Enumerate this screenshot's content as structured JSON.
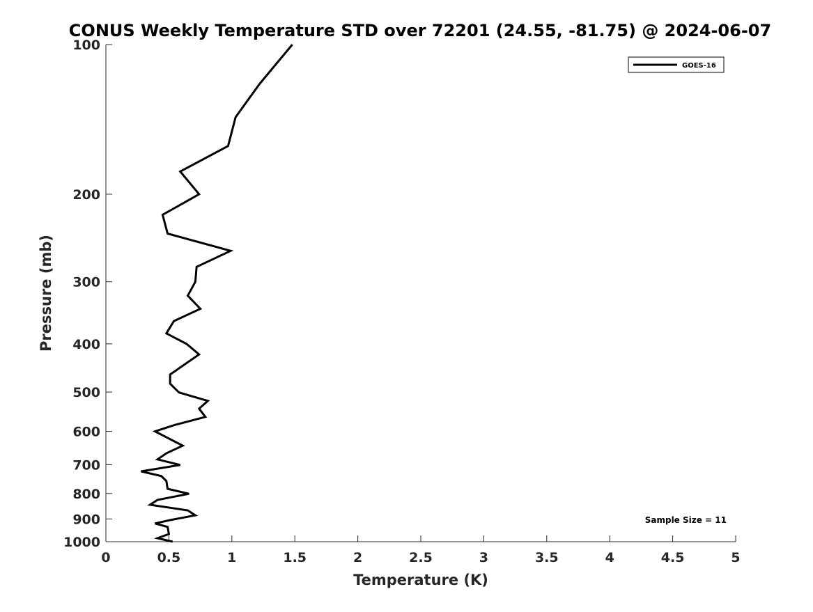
{
  "chart_data": {
    "type": "line",
    "title": "CONUS Weekly Temperature STD over 72201 (24.55, -81.75) @ 2024-06-07",
    "xlabel": "Temperature (K)",
    "ylabel": "Pressure (mb)",
    "xlim": [
      0,
      5
    ],
    "ylim": [
      100,
      1000
    ],
    "yscale": "log",
    "yreversed": true,
    "xticks": [
      "0",
      "0.5",
      "1",
      "1.5",
      "2",
      "2.5",
      "3",
      "3.5",
      "4",
      "4.5",
      "5"
    ],
    "yticks": [
      "100",
      "200",
      "300",
      "400",
      "500",
      "600",
      "700",
      "800",
      "900",
      "1000"
    ],
    "grid": false,
    "legend": {
      "placement": "top-right",
      "entries": [
        "GOES-16"
      ]
    },
    "annotation": "Sample Size = 11",
    "series": [
      {
        "name": "GOES-16",
        "color": "#000000",
        "x": [
          1.48,
          1.22,
          1.03,
          0.97,
          0.59,
          0.74,
          0.45,
          0.49,
          0.99,
          0.72,
          0.71,
          0.65,
          0.75,
          0.54,
          0.48,
          0.64,
          0.74,
          0.51,
          0.51,
          0.58,
          0.81,
          0.74,
          0.79,
          0.55,
          0.39,
          0.61,
          0.48,
          0.41,
          0.59,
          0.28,
          0.44,
          0.48,
          0.49,
          0.66,
          0.41,
          0.35,
          0.65,
          0.71,
          0.51,
          0.39,
          0.49,
          0.5,
          0.41,
          0.53
        ],
        "y": [
          100,
          120,
          140,
          160,
          180,
          200,
          220,
          240,
          260,
          280,
          300,
          320,
          340,
          360,
          381,
          400,
          420,
          461,
          481,
          501,
          521,
          540,
          561,
          582,
          600,
          641,
          664,
          683,
          701,
          722,
          738,
          755,
          783,
          801,
          824,
          843,
          865,
          885,
          905,
          919,
          934,
          965,
          984,
          1000
        ]
      }
    ]
  }
}
